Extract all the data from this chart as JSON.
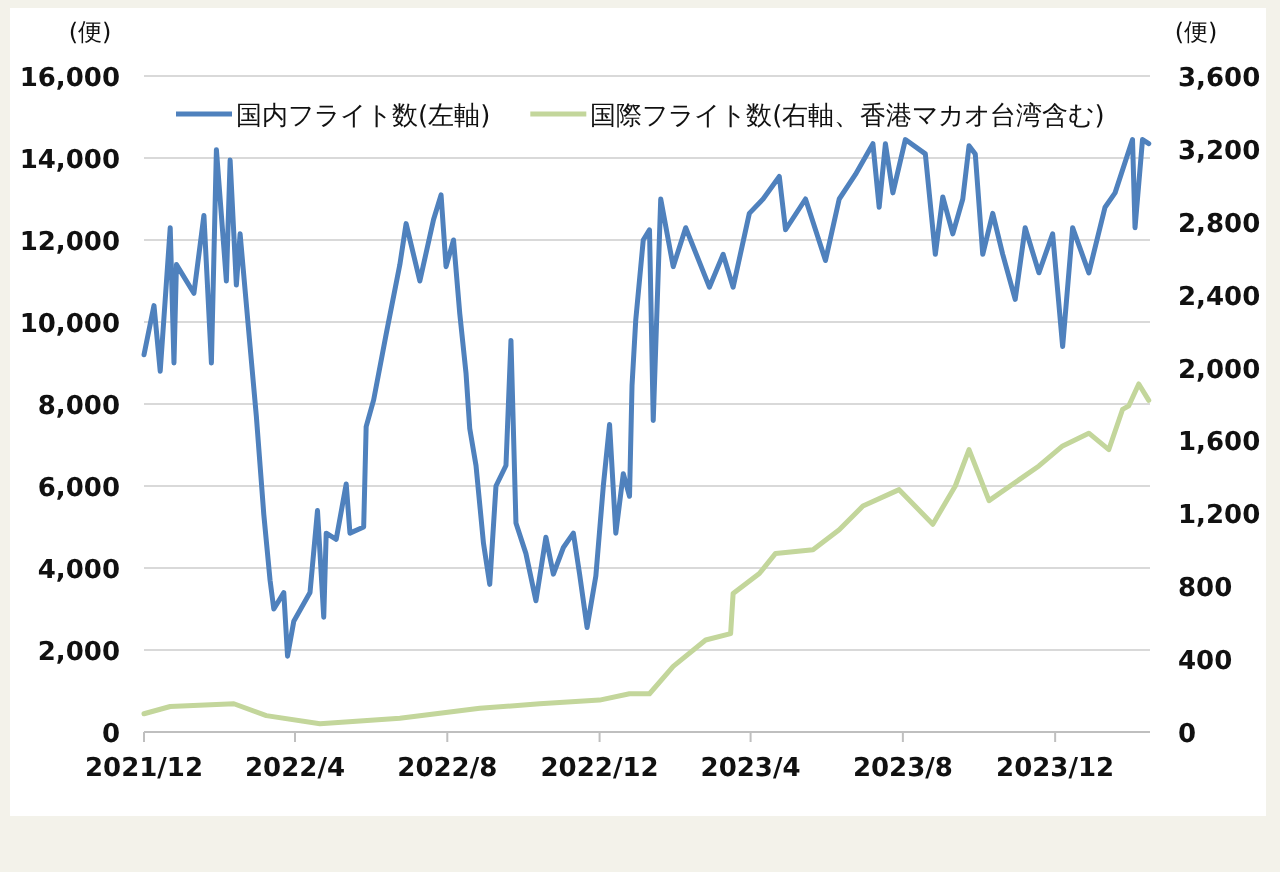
{
  "chart_data": {
    "type": "line",
    "ylabel": "(便)",
    "y2label": "(便)",
    "xlim": [
      "2021-12-01",
      "2024-02-15"
    ],
    "xticks": [
      {
        "value": "2021-12-01",
        "label": "2021/12"
      },
      {
        "value": "2022-04-01",
        "label": "2022/4"
      },
      {
        "value": "2022-08-01",
        "label": "2022/8"
      },
      {
        "value": "2022-12-01",
        "label": "2022/12"
      },
      {
        "value": "2023-04-01",
        "label": "2023/4"
      },
      {
        "value": "2023-08-01",
        "label": "2023/8"
      },
      {
        "value": "2023-12-01",
        "label": "2023/12"
      }
    ],
    "ylim": [
      0,
      16000
    ],
    "yticks": [
      {
        "value": 0,
        "label": "0"
      },
      {
        "value": 2000,
        "label": "2,000"
      },
      {
        "value": 4000,
        "label": "4,000"
      },
      {
        "value": 6000,
        "label": "6,000"
      },
      {
        "value": 8000,
        "label": "8,000"
      },
      {
        "value": 10000,
        "label": "10,000"
      },
      {
        "value": 12000,
        "label": "12,000"
      },
      {
        "value": 14000,
        "label": "14,000"
      },
      {
        "value": 16000,
        "label": "16,000"
      }
    ],
    "y2lim": [
      0,
      3600
    ],
    "y2ticks": [
      0,
      400,
      800,
      {
        "value": 1200,
        "label": "1,200"
      },
      {
        "value": 1600,
        "label": "1,600"
      },
      {
        "value": 2000,
        "label": "2,000"
      },
      {
        "value": 2400,
        "label": "2,400"
      },
      {
        "value": 2800,
        "label": "2,800"
      },
      {
        "value": 3200,
        "label": "3,200"
      },
      {
        "value": 3600,
        "label": "3,600"
      }
    ],
    "grid": "y",
    "legend": "top",
    "series": [
      {
        "name": "国内フライト数(左軸)",
        "color": "#4f81bd",
        "x": [
          "2021-12-01",
          "2021-12-09",
          "2021-12-14",
          "2021-12-22",
          "2021-12-25",
          "2021-12-27",
          "2022-01-10",
          "2022-01-18",
          "2022-01-24",
          "2022-01-28",
          "2022-02-05",
          "2022-02-08",
          "2022-02-13",
          "2022-02-16",
          "2022-02-24",
          "2022-03-01",
          "2022-03-07",
          "2022-03-12",
          "2022-03-15",
          "2022-03-23",
          "2022-03-26",
          "2022-03-31",
          "2022-04-13",
          "2022-04-19",
          "2022-04-24",
          "2022-04-26",
          "2022-05-04",
          "2022-05-12",
          "2022-05-15",
          "2022-05-26",
          "2022-05-28",
          "2022-06-03",
          "2022-06-13",
          "2022-06-24",
          "2022-06-29",
          "2022-07-10",
          "2022-07-21",
          "2022-07-27",
          "2022-07-31",
          "2022-08-06",
          "2022-08-11",
          "2022-08-16",
          "2022-08-19",
          "2022-08-24",
          "2022-08-30",
          "2022-09-04",
          "2022-09-09",
          "2022-09-17",
          "2022-09-21",
          "2022-09-25",
          "2022-10-03",
          "2022-10-11",
          "2022-10-19",
          "2022-10-25",
          "2022-11-02",
          "2022-11-10",
          "2022-11-15",
          "2022-11-21",
          "2022-11-28",
          "2022-12-04",
          "2022-12-09",
          "2022-12-14",
          "2022-12-20",
          "2022-12-25",
          "2022-12-27",
          "2022-12-30",
          "2023-01-05",
          "2023-01-10",
          "2023-01-13",
          "2023-01-19",
          "2023-01-29",
          "2023-02-08",
          "2023-02-27",
          "2023-03-10",
          "2023-03-18",
          "2023-03-31",
          "2023-04-11",
          "2023-04-24",
          "2023-04-29",
          "2023-05-15",
          "2023-05-31",
          "2023-06-11",
          "2023-06-24",
          "2023-07-08",
          "2023-07-13",
          "2023-07-18",
          "2023-07-24",
          "2023-08-03",
          "2023-08-19",
          "2023-08-27",
          "2023-09-02",
          "2023-09-10",
          "2023-09-18",
          "2023-09-23",
          "2023-09-28",
          "2023-10-04",
          "2023-10-12",
          "2023-10-20",
          "2023-10-30",
          "2023-11-07",
          "2023-11-18",
          "2023-11-29",
          "2023-12-07",
          "2023-12-15",
          "2023-12-28",
          "2024-01-10",
          "2024-01-18",
          "2024-02-01",
          "2024-02-03",
          "2024-02-09",
          "2024-02-14"
        ],
        "values": [
          9200,
          10400,
          8800,
          12300,
          9000,
          11400,
          10700,
          12600,
          9000,
          14200,
          11000,
          13950,
          10900,
          12150,
          9400,
          7700,
          5300,
          3700,
          3000,
          3400,
          1850,
          2700,
          3400,
          5400,
          2800,
          4850,
          4700,
          6050,
          4850,
          5000,
          7450,
          8100,
          9700,
          11400,
          12400,
          11000,
          12500,
          13100,
          11350,
          12000,
          10200,
          8750,
          7400,
          6500,
          4600,
          3600,
          6000,
          6500,
          9550,
          5100,
          4350,
          3200,
          4750,
          3850,
          4500,
          4850,
          3850,
          2550,
          3800,
          6000,
          7500,
          4850,
          6300,
          5750,
          8450,
          10050,
          12000,
          12250,
          7600,
          13000,
          11350,
          12300,
          10850,
          11650,
          10850,
          12650,
          13000,
          13550,
          12250,
          13000,
          11500,
          13000,
          13600,
          14350,
          12800,
          14350,
          13150,
          14450,
          14100,
          11650,
          13050,
          12150,
          13000,
          14300,
          14100,
          11650,
          12650,
          11650,
          10550,
          12300,
          11200,
          12150,
          9400,
          12300,
          11200,
          12800,
          13150,
          14450,
          12300,
          14450,
          14350
        ]
      },
      {
        "name": "国際フライト数(右軸、香港マカオ台湾含む)",
        "color": "#c3d69b",
        "axis": "y2",
        "x": [
          "2021-12-01",
          "2021-12-22",
          "2022-02-11",
          "2022-03-09",
          "2022-04-21",
          "2022-06-24",
          "2022-08-27",
          "2022-10-14",
          "2022-12-01",
          "2022-12-25",
          "2023-01-10",
          "2023-01-29",
          "2023-02-24",
          "2023-03-16",
          "2023-03-18",
          "2023-04-08",
          "2023-04-21",
          "2023-05-21",
          "2023-06-11",
          "2023-06-30",
          "2023-07-29",
          "2023-08-25",
          "2023-09-12",
          "2023-09-23",
          "2023-10-09",
          "2023-11-18",
          "2023-12-07",
          "2023-12-28",
          "2024-01-13",
          "2024-01-24",
          "2024-01-29",
          "2024-02-06",
          "2024-02-14"
        ],
        "values": [
          100,
          140,
          155,
          90,
          45,
          75,
          130,
          155,
          175,
          210,
          210,
          360,
          505,
          540,
          760,
          870,
          980,
          1000,
          1110,
          1240,
          1330,
          1140,
          1350,
          1550,
          1270,
          1460,
          1570,
          1640,
          1550,
          1770,
          1790,
          1910,
          1820
        ]
      }
    ]
  }
}
